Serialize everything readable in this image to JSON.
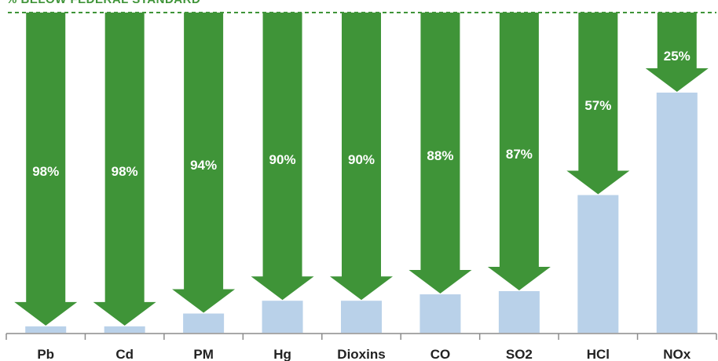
{
  "chart_data": {
    "type": "bar",
    "title": "% BELOW FEDERAL STANDARD",
    "xlabel": "",
    "ylabel": "",
    "ylim": [
      0,
      100
    ],
    "grid": false,
    "reference_line": {
      "value": 100,
      "style": "dashed",
      "color": "#3f9438"
    },
    "categories": [
      "Pb",
      "Cd",
      "PM",
      "Hg",
      "Dioxins",
      "CO",
      "SO2",
      "HCl",
      "NOx"
    ],
    "series": [
      {
        "name": "",
        "values": [
          2,
          2,
          6,
          10,
          10,
          12,
          13,
          43,
          75
        ],
        "color": "#b9d1e9"
      }
    ],
    "reductions": [
      98,
      98,
      94,
      90,
      90,
      88,
      87,
      57,
      25
    ],
    "reduction_labels": [
      "98%",
      "98%",
      "94%",
      "90%",
      "90%",
      "88%",
      "87%",
      "57%",
      "25%"
    ],
    "arrow_color": "#3f9438"
  }
}
